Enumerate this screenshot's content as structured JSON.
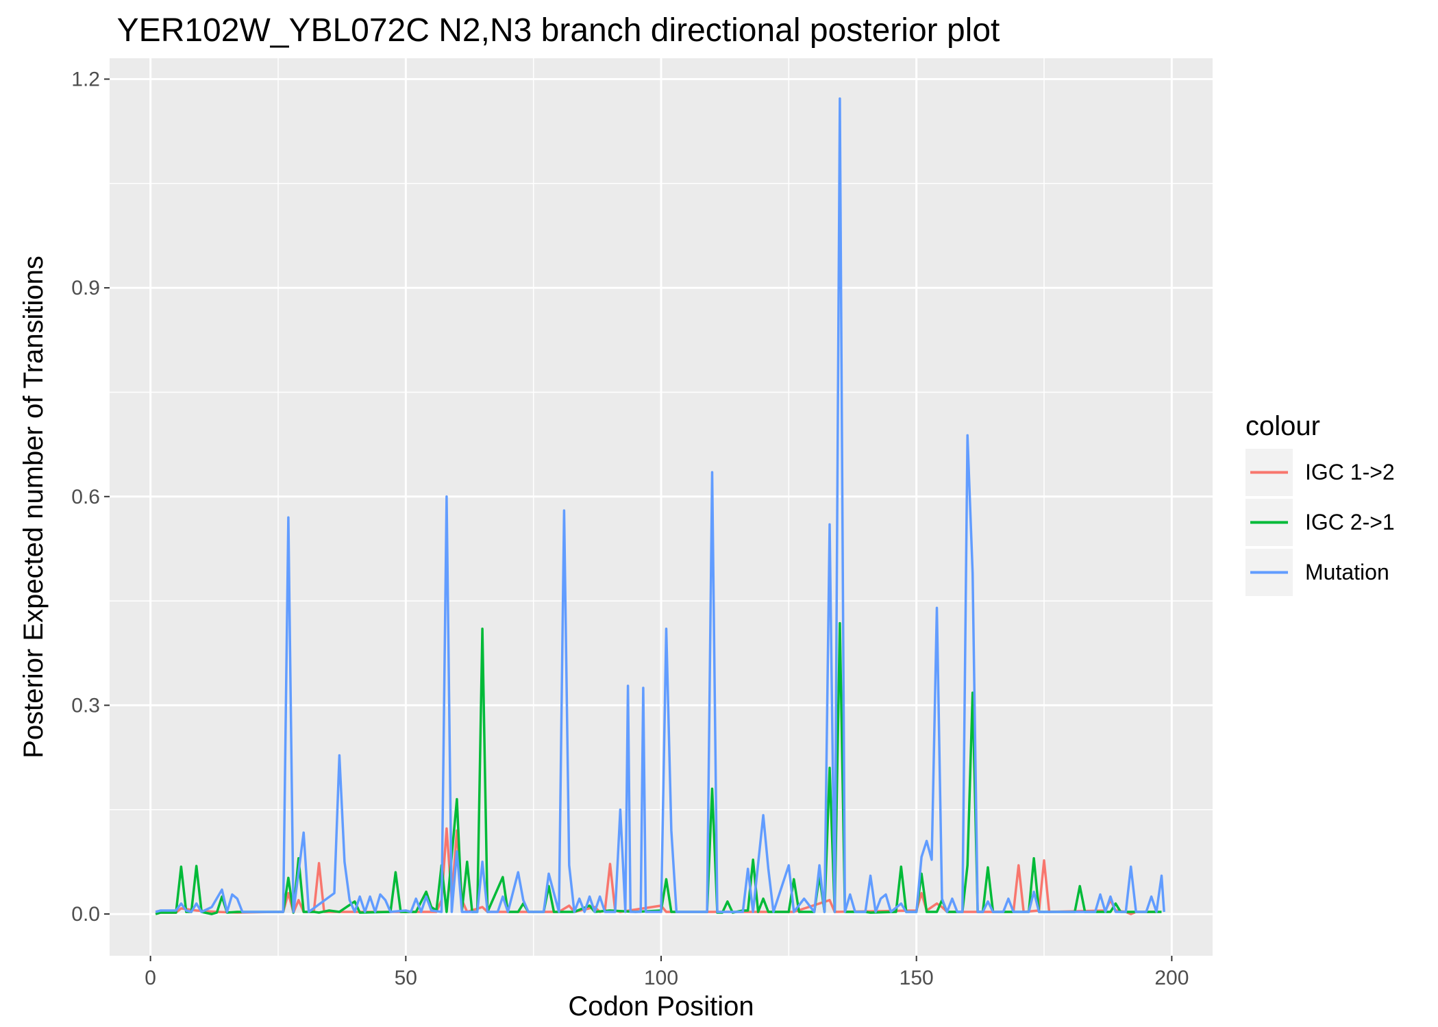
{
  "chart_data": {
    "type": "line",
    "title": "YER102W_YBL072C N2,N3 branch directional posterior plot",
    "xlabel": "Codon Position",
    "ylabel": "Posterior Expected number of Transitions",
    "xlim": [
      -8,
      208
    ],
    "ylim": [
      -0.06,
      1.23
    ],
    "x_ticks": [
      0,
      50,
      100,
      150,
      200
    ],
    "x_tick_labels": [
      "0",
      "50",
      "100",
      "150",
      "200"
    ],
    "y_ticks": [
      0.0,
      0.3,
      0.6,
      0.9,
      1.2
    ],
    "y_tick_labels": [
      "0.0",
      "0.3",
      "0.6",
      "0.9",
      "1.2"
    ],
    "grid": true,
    "legend": {
      "title": "colour",
      "position": "right"
    },
    "series": [
      {
        "name": "IGC 1->2",
        "color": "#F8766D",
        "points": [
          [
            1,
            0
          ],
          [
            2,
            0.002
          ],
          [
            5,
            0.002
          ],
          [
            6,
            0.008
          ],
          [
            9,
            0.005
          ],
          [
            13,
            0.003
          ],
          [
            17,
            0.002
          ],
          [
            25,
            0.003
          ],
          [
            26,
            0.003
          ],
          [
            27,
            0.03
          ],
          [
            28,
            0.002
          ],
          [
            29,
            0.02
          ],
          [
            30,
            0.003
          ],
          [
            32,
            0.003
          ],
          [
            33,
            0.073
          ],
          [
            34,
            0.003
          ],
          [
            38,
            0.003
          ],
          [
            47,
            0.003
          ],
          [
            56,
            0.003
          ],
          [
            57,
            0.02
          ],
          [
            58,
            0.123
          ],
          [
            59,
            0.02
          ],
          [
            60,
            0.12
          ],
          [
            61,
            0.02
          ],
          [
            62,
            0.003
          ],
          [
            65,
            0.01
          ],
          [
            66,
            0.003
          ],
          [
            80,
            0.003
          ],
          [
            82,
            0.012
          ],
          [
            83,
            0.003
          ],
          [
            87,
            0.01
          ],
          [
            88,
            0.003
          ],
          [
            89,
            0.005
          ],
          [
            90,
            0.072
          ],
          [
            91,
            0.005
          ],
          [
            92,
            0.003
          ],
          [
            100,
            0.012
          ],
          [
            101,
            0.003
          ],
          [
            126,
            0.003
          ],
          [
            133,
            0.02
          ],
          [
            134,
            0.003
          ],
          [
            150,
            0.005
          ],
          [
            151,
            0.03
          ],
          [
            152,
            0.005
          ],
          [
            154,
            0.015
          ],
          [
            155,
            0.01
          ],
          [
            156,
            0.003
          ],
          [
            169,
            0.003
          ],
          [
            170,
            0.07
          ],
          [
            171,
            0.003
          ],
          [
            174,
            0.005
          ],
          [
            175,
            0.077
          ],
          [
            176,
            0.003
          ],
          [
            187,
            0.005
          ],
          [
            188,
            0.02
          ],
          [
            189,
            0.005
          ],
          [
            191,
            0.003
          ],
          [
            192,
            0
          ],
          [
            193,
            0.003
          ],
          [
            197,
            0.003
          ]
        ]
      },
      {
        "name": "IGC 2->1",
        "color": "#00BA38",
        "points": [
          [
            1,
            0
          ],
          [
            2,
            0.002
          ],
          [
            5,
            0.002
          ],
          [
            6,
            0.068
          ],
          [
            7,
            0.003
          ],
          [
            8,
            0.003
          ],
          [
            9,
            0.069
          ],
          [
            10,
            0.003
          ],
          [
            12,
            0
          ],
          [
            13,
            0.002
          ],
          [
            14,
            0.025
          ],
          [
            15,
            0.002
          ],
          [
            17,
            0.003
          ],
          [
            25,
            0.003
          ],
          [
            26,
            0.003
          ],
          [
            27,
            0.052
          ],
          [
            28,
            0.002
          ],
          [
            29,
            0.08
          ],
          [
            30,
            0.003
          ],
          [
            32,
            0.003
          ],
          [
            33,
            0.002
          ],
          [
            35,
            0.005
          ],
          [
            37,
            0.003
          ],
          [
            40,
            0.018
          ],
          [
            41,
            0.002
          ],
          [
            47,
            0.003
          ],
          [
            48,
            0.06
          ],
          [
            49,
            0.003
          ],
          [
            52,
            0.003
          ],
          [
            54,
            0.032
          ],
          [
            55,
            0.01
          ],
          [
            56,
            0.005
          ],
          [
            57,
            0.07
          ],
          [
            58,
            0.003
          ],
          [
            60,
            0.165
          ],
          [
            61,
            0.005
          ],
          [
            62,
            0.075
          ],
          [
            63,
            0.003
          ],
          [
            64,
            0.003
          ],
          [
            65,
            0.41
          ],
          [
            66,
            0.003
          ],
          [
            69,
            0.053
          ],
          [
            70,
            0.003
          ],
          [
            72,
            0.003
          ],
          [
            73,
            0.015
          ],
          [
            74,
            0.003
          ],
          [
            77,
            0.003
          ],
          [
            78,
            0.04
          ],
          [
            79,
            0.003
          ],
          [
            83,
            0.003
          ],
          [
            86,
            0.012
          ],
          [
            87,
            0.003
          ],
          [
            90,
            0.005
          ],
          [
            95,
            0.003
          ],
          [
            100,
            0.005
          ],
          [
            101,
            0.05
          ],
          [
            102,
            0.003
          ],
          [
            109,
            0.003
          ],
          [
            110,
            0.18
          ],
          [
            111,
            0.002
          ],
          [
            112,
            0.002
          ],
          [
            113,
            0.018
          ],
          [
            114,
            0.002
          ],
          [
            116,
            0.005
          ],
          [
            117,
            0.005
          ],
          [
            118,
            0.078
          ],
          [
            119,
            0.003
          ],
          [
            120,
            0.022
          ],
          [
            121,
            0.003
          ],
          [
            125,
            0.003
          ],
          [
            126,
            0.05
          ],
          [
            127,
            0.003
          ],
          [
            130,
            0.003
          ],
          [
            131,
            0.055
          ],
          [
            132,
            0.003
          ],
          [
            133,
            0.21
          ],
          [
            134,
            0.003
          ],
          [
            135,
            0.418
          ],
          [
            136,
            0.003
          ],
          [
            140,
            0.003
          ],
          [
            141,
            0.002
          ],
          [
            146,
            0.003
          ],
          [
            147,
            0.068
          ],
          [
            148,
            0.003
          ],
          [
            150,
            0.003
          ],
          [
            151,
            0.058
          ],
          [
            152,
            0.003
          ],
          [
            154,
            0.003
          ],
          [
            155,
            0.02
          ],
          [
            156,
            0.003
          ],
          [
            159,
            0.003
          ],
          [
            160,
            0.07
          ],
          [
            161,
            0.318
          ],
          [
            162,
            0.003
          ],
          [
            163,
            0.003
          ],
          [
            164,
            0.067
          ],
          [
            165,
            0.003
          ],
          [
            168,
            0.003
          ],
          [
            169,
            0.003
          ],
          [
            172,
            0.003
          ],
          [
            173,
            0.08
          ],
          [
            174,
            0.003
          ],
          [
            181,
            0.003
          ],
          [
            182,
            0.04
          ],
          [
            183,
            0.003
          ],
          [
            187,
            0.003
          ],
          [
            188,
            0.003
          ],
          [
            189,
            0.015
          ],
          [
            190,
            0.003
          ],
          [
            196,
            0.003
          ],
          [
            198,
            0.003
          ]
        ]
      },
      {
        "name": "Mutation",
        "color": "#619CFF",
        "points": [
          [
            1,
            0.003
          ],
          [
            2,
            0.005
          ],
          [
            5,
            0.005
          ],
          [
            6,
            0.015
          ],
          [
            7,
            0.005
          ],
          [
            8,
            0.003
          ],
          [
            9,
            0.015
          ],
          [
            10,
            0.003
          ],
          [
            12,
            0.01
          ],
          [
            14,
            0.035
          ],
          [
            15,
            0.003
          ],
          [
            16,
            0.028
          ],
          [
            17,
            0.022
          ],
          [
            18,
            0.003
          ],
          [
            25,
            0.003
          ],
          [
            26,
            0.003
          ],
          [
            27,
            0.57
          ],
          [
            28,
            0.003
          ],
          [
            29,
            0.06
          ],
          [
            30,
            0.117
          ],
          [
            31,
            0.003
          ],
          [
            36,
            0.03
          ],
          [
            37,
            0.228
          ],
          [
            38,
            0.075
          ],
          [
            39,
            0.02
          ],
          [
            40,
            0.003
          ],
          [
            41,
            0.025
          ],
          [
            42,
            0.003
          ],
          [
            43,
            0.025
          ],
          [
            44,
            0.003
          ],
          [
            45,
            0.028
          ],
          [
            46,
            0.02
          ],
          [
            47,
            0.003
          ],
          [
            50,
            0.005
          ],
          [
            51,
            0.003
          ],
          [
            52,
            0.022
          ],
          [
            53,
            0.003
          ],
          [
            54,
            0.025
          ],
          [
            55,
            0.005
          ],
          [
            57,
            0.003
          ],
          [
            58,
            0.6
          ],
          [
            59,
            0.003
          ],
          [
            60,
            0.09
          ],
          [
            61,
            0.003
          ],
          [
            64,
            0.003
          ],
          [
            65,
            0.075
          ],
          [
            66,
            0.003
          ],
          [
            68,
            0.003
          ],
          [
            69,
            0.025
          ],
          [
            70,
            0.003
          ],
          [
            72,
            0.06
          ],
          [
            73,
            0.02
          ],
          [
            74,
            0.003
          ],
          [
            77,
            0.003
          ],
          [
            78,
            0.058
          ],
          [
            79,
            0.03
          ],
          [
            80,
            0.003
          ],
          [
            81,
            0.58
          ],
          [
            82,
            0.07
          ],
          [
            83,
            0.003
          ],
          [
            84,
            0.022
          ],
          [
            85,
            0.003
          ],
          [
            86,
            0.025
          ],
          [
            87,
            0.003
          ],
          [
            88,
            0.025
          ],
          [
            89,
            0.003
          ],
          [
            91,
            0.003
          ],
          [
            92,
            0.15
          ],
          [
            93,
            0.003
          ],
          [
            93.5,
            0.328
          ],
          [
            94,
            0.003
          ],
          [
            96,
            0.003
          ],
          [
            96.5,
            0.325
          ],
          [
            97,
            0.003
          ],
          [
            100,
            0.003
          ],
          [
            101,
            0.41
          ],
          [
            102,
            0.12
          ],
          [
            103,
            0.003
          ],
          [
            106,
            0.003
          ],
          [
            109,
            0.003
          ],
          [
            110,
            0.635
          ],
          [
            111,
            0.003
          ],
          [
            116,
            0.003
          ],
          [
            117,
            0.065
          ],
          [
            118,
            0.003
          ],
          [
            120,
            0.142
          ],
          [
            121,
            0.065
          ],
          [
            122,
            0.003
          ],
          [
            125,
            0.07
          ],
          [
            126,
            0.003
          ],
          [
            128,
            0.022
          ],
          [
            130,
            0.003
          ],
          [
            131,
            0.07
          ],
          [
            132,
            0.003
          ],
          [
            133,
            0.56
          ],
          [
            134,
            0.003
          ],
          [
            135,
            1.172
          ],
          [
            136,
            0.003
          ],
          [
            137,
            0.028
          ],
          [
            138,
            0.003
          ],
          [
            140,
            0.003
          ],
          [
            141,
            0.055
          ],
          [
            142,
            0.003
          ],
          [
            143,
            0.022
          ],
          [
            144,
            0.028
          ],
          [
            145,
            0.003
          ],
          [
            147,
            0.015
          ],
          [
            148,
            0.003
          ],
          [
            150,
            0.003
          ],
          [
            151,
            0.082
          ],
          [
            152,
            0.105
          ],
          [
            153,
            0.078
          ],
          [
            154,
            0.44
          ],
          [
            155,
            0.022
          ],
          [
            156,
            0.003
          ],
          [
            157,
            0.022
          ],
          [
            158,
            0.003
          ],
          [
            159,
            0.003
          ],
          [
            160,
            0.688
          ],
          [
            161,
            0.49
          ],
          [
            162,
            0.003
          ],
          [
            163,
            0.003
          ],
          [
            164,
            0.018
          ],
          [
            165,
            0.003
          ],
          [
            167,
            0.003
          ],
          [
            168,
            0.022
          ],
          [
            169,
            0.003
          ],
          [
            172,
            0.003
          ],
          [
            173,
            0.032
          ],
          [
            174,
            0.003
          ],
          [
            185,
            0.003
          ],
          [
            186,
            0.028
          ],
          [
            187,
            0.003
          ],
          [
            188,
            0.025
          ],
          [
            189,
            0.003
          ],
          [
            191,
            0.003
          ],
          [
            192,
            0.068
          ],
          [
            193,
            0.003
          ],
          [
            195,
            0.003
          ],
          [
            196,
            0.025
          ],
          [
            197,
            0.003
          ],
          [
            198,
            0.055
          ],
          [
            198.5,
            0.003
          ]
        ]
      }
    ]
  }
}
